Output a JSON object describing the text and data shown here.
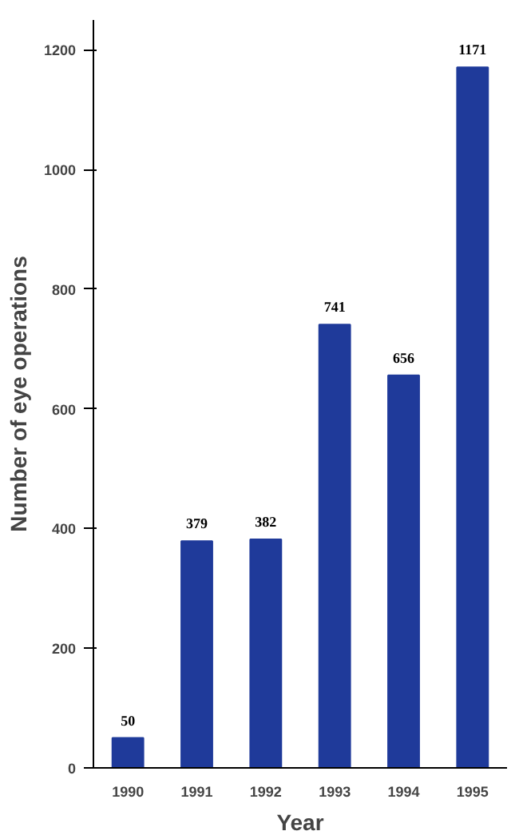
{
  "chart_data": {
    "type": "bar",
    "xlabel": "Year",
    "ylabel": "Number of eye operations",
    "categories": [
      "1990",
      "1991",
      "1992",
      "1993",
      "1994",
      "1995"
    ],
    "values": [
      50,
      379,
      382,
      741,
      656,
      1171
    ],
    "color": "#1f3a9a",
    "ylim": [
      0,
      1250
    ],
    "yticks": [
      0,
      200,
      400,
      600,
      800,
      1000,
      1200
    ],
    "grid": false,
    "data_labels": true
  }
}
